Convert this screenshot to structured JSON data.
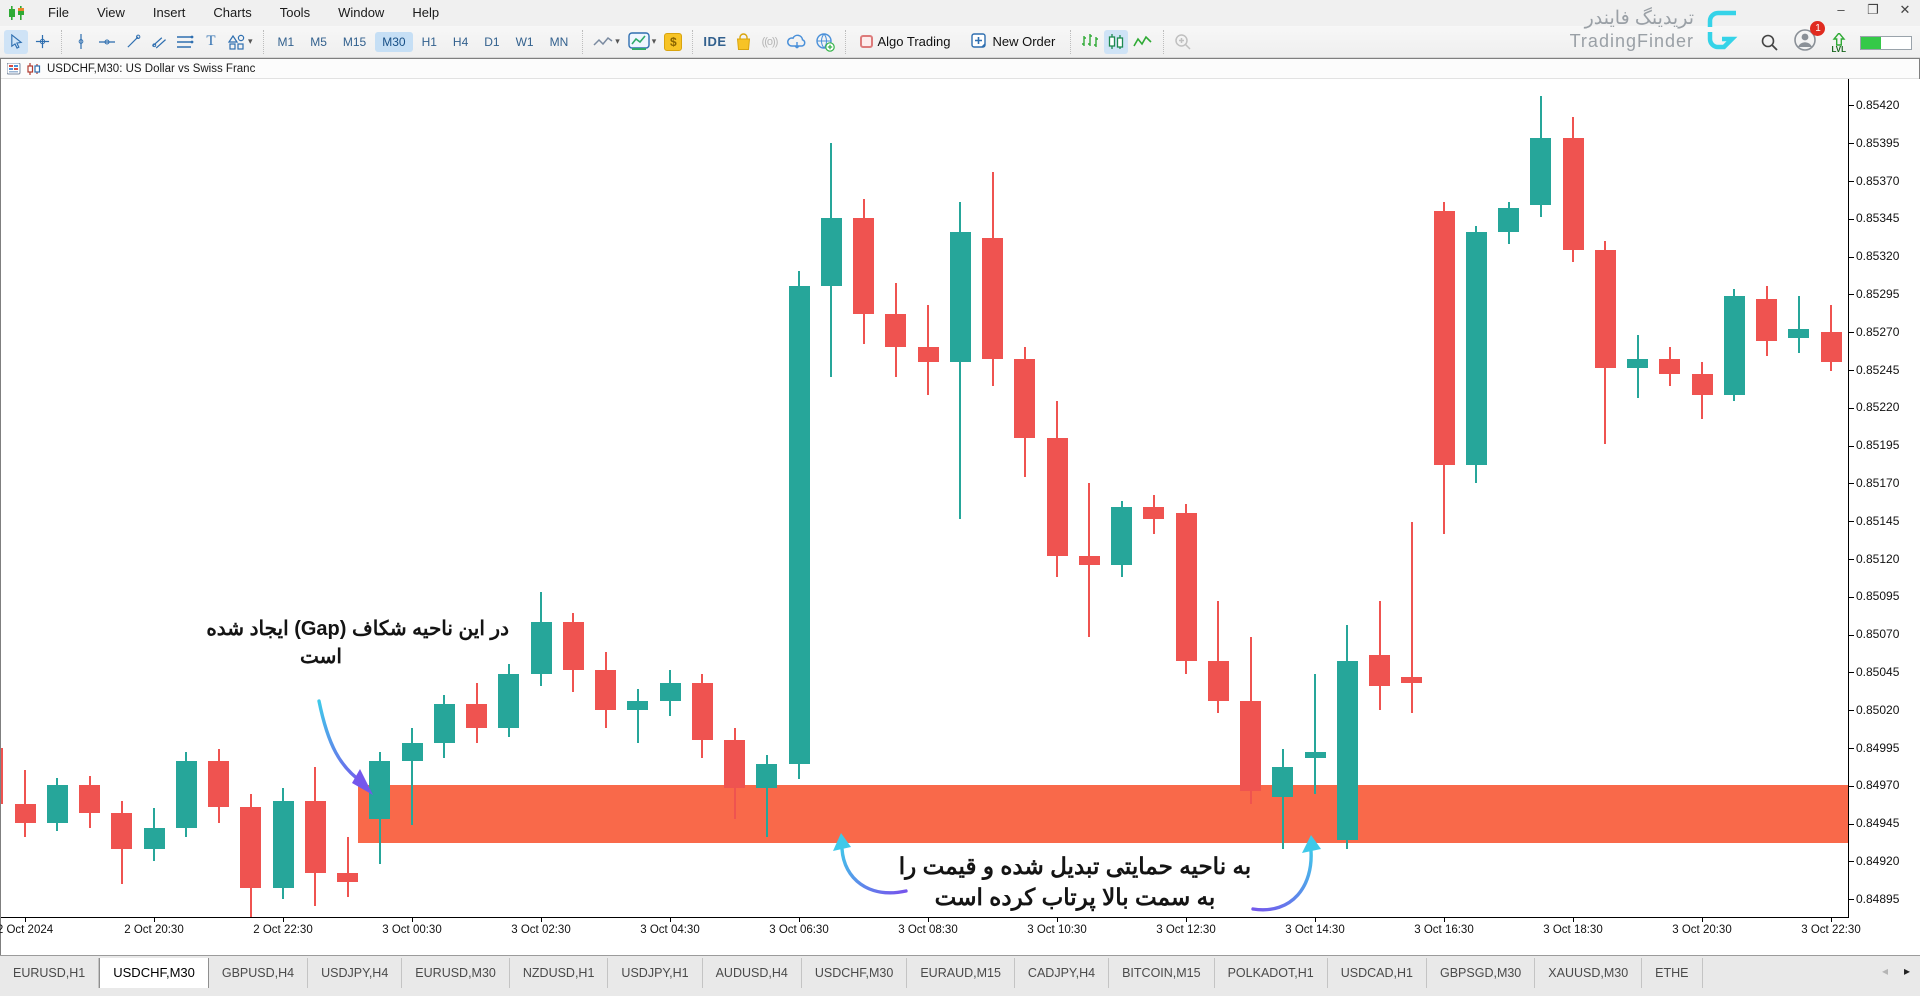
{
  "colors": {
    "bull": "#26A69A",
    "bear": "#EF5350",
    "zone": "#F9694A",
    "toolbar_accent": "#2F6FB0",
    "annotation_cyan": "#3FC9E9",
    "annotation_purple": "#7457EC",
    "logo_cyan": "#35D3E8",
    "badge_red": "#E02B20",
    "progress_green": "#35C948"
  },
  "menubar": {
    "items": [
      "File",
      "View",
      "Insert",
      "Charts",
      "Tools",
      "Window",
      "Help"
    ]
  },
  "window_controls": {
    "minimize": "–",
    "restore": "❐",
    "close": "✕"
  },
  "toolbar": {
    "timeframes": [
      "M1",
      "M5",
      "M15",
      "M30",
      "H1",
      "H4",
      "D1",
      "W1",
      "MN"
    ],
    "selected_timeframe": "M30",
    "ide_label": "IDE",
    "algo_trading_label": "Algo Trading",
    "new_order_label": "New Order",
    "signal_glyph": "((o))"
  },
  "watermark": {
    "title_fa": "تریدینگ فایندر",
    "title_en": "TradingFinder",
    "notification_count": "1",
    "lvl_label": "LVL"
  },
  "chart": {
    "title": "USDCHF,M30:  US Dollar vs Swiss Franc",
    "price_labels": [
      "0.85420",
      "0.85395",
      "0.85370",
      "0.85345",
      "0.85320",
      "0.85295",
      "0.85270",
      "0.85245",
      "0.85220",
      "0.85195",
      "0.85170",
      "0.85145",
      "0.85120",
      "0.85095",
      "0.85070",
      "0.85045",
      "0.85020",
      "0.84995",
      "0.84970",
      "0.84945",
      "0.84920",
      "0.84895"
    ],
    "time_labels": [
      "2 Oct 2024",
      "2 Oct 20:30",
      "2 Oct 22:30",
      "3 Oct 00:30",
      "3 Oct 02:30",
      "3 Oct 04:30",
      "3 Oct 06:30",
      "3 Oct 08:30",
      "3 Oct 10:30",
      "3 Oct 12:30",
      "3 Oct 14:30",
      "3 Oct 16:30",
      "3 Oct 18:30",
      "3 Oct 20:30",
      "3 Oct 22:30"
    ],
    "annotations": {
      "gap_note_line1": "در این ناحیه شکاف (Gap) ایجاد شده",
      "gap_note_line2": "است",
      "support_note_line1": "به ناحیه حمایتی تبدیل شده و قیمت را",
      "support_note_line2": "به سمت بالا پرتاب کرده است"
    }
  },
  "chart_data": {
    "type": "candlestick",
    "symbol": "USDCHF",
    "timeframe": "M30",
    "title": "USDCHF,M30: US Dollar vs Swiss Franc",
    "y_axis": {
      "min": 0.84882,
      "max": 0.85437,
      "tick_step": 0.00025
    },
    "zone": {
      "label": "gap-support-zone",
      "price_top": 0.8497,
      "price_bottom": 0.84932,
      "color": "#F9694A"
    },
    "columns": [
      "time",
      "open",
      "high",
      "low",
      "close"
    ],
    "candles": [
      [
        "2 Oct 18:00",
        0.84995,
        0.85,
        0.84948,
        0.84958
      ],
      [
        "2 Oct 18:30",
        0.84958,
        0.8498,
        0.84936,
        0.84945
      ],
      [
        "2 Oct 19:00",
        0.84945,
        0.84975,
        0.8494,
        0.8497
      ],
      [
        "2 Oct 19:30",
        0.8497,
        0.84976,
        0.84942,
        0.84952
      ],
      [
        "2 Oct 20:00",
        0.84952,
        0.8496,
        0.84905,
        0.84928
      ],
      [
        "2 Oct 20:30",
        0.84928,
        0.84955,
        0.8492,
        0.84942
      ],
      [
        "2 Oct 21:00",
        0.84942,
        0.84992,
        0.84936,
        0.84986
      ],
      [
        "2 Oct 21:30",
        0.84986,
        0.84994,
        0.84945,
        0.84956
      ],
      [
        "2 Oct 22:00",
        0.84956,
        0.84964,
        0.84882,
        0.84902
      ],
      [
        "2 Oct 22:30",
        0.84902,
        0.84968,
        0.84895,
        0.8496
      ],
      [
        "2 Oct 23:00",
        0.8496,
        0.84982,
        0.8489,
        0.84912
      ],
      [
        "2 Oct 23:30",
        0.84912,
        0.84936,
        0.84896,
        0.84906
      ],
      [
        "3 Oct 00:00",
        0.84948,
        0.84992,
        0.84918,
        0.84986
      ],
      [
        "3 Oct 00:30",
        0.84986,
        0.85008,
        0.84944,
        0.84998
      ],
      [
        "3 Oct 01:00",
        0.84998,
        0.8503,
        0.84988,
        0.85024
      ],
      [
        "3 Oct 01:30",
        0.85024,
        0.85038,
        0.84998,
        0.85008
      ],
      [
        "3 Oct 02:00",
        0.85008,
        0.8505,
        0.85002,
        0.85044
      ],
      [
        "3 Oct 02:30",
        0.85044,
        0.85098,
        0.85036,
        0.85078
      ],
      [
        "3 Oct 03:00",
        0.85078,
        0.85084,
        0.85032,
        0.85046
      ],
      [
        "3 Oct 03:30",
        0.85046,
        0.85058,
        0.85008,
        0.8502
      ],
      [
        "3 Oct 04:00",
        0.8502,
        0.85034,
        0.84998,
        0.85026
      ],
      [
        "3 Oct 04:30",
        0.85026,
        0.85046,
        0.85016,
        0.85038
      ],
      [
        "3 Oct 05:00",
        0.85038,
        0.85044,
        0.84988,
        0.85
      ],
      [
        "3 Oct 05:30",
        0.85,
        0.85008,
        0.84948,
        0.84968
      ],
      [
        "3 Oct 06:00",
        0.84968,
        0.8499,
        0.84936,
        0.84984
      ],
      [
        "3 Oct 06:30",
        0.84984,
        0.8531,
        0.84974,
        0.853
      ],
      [
        "3 Oct 07:00",
        0.853,
        0.85395,
        0.8524,
        0.85345
      ],
      [
        "3 Oct 07:30",
        0.85345,
        0.85358,
        0.85262,
        0.85282
      ],
      [
        "3 Oct 08:00",
        0.85282,
        0.85302,
        0.8524,
        0.8526
      ],
      [
        "3 Oct 08:30",
        0.8526,
        0.85288,
        0.85228,
        0.8525
      ],
      [
        "3 Oct 09:00",
        0.8525,
        0.85356,
        0.85146,
        0.85336
      ],
      [
        "3 Oct 09:30",
        0.85332,
        0.85376,
        0.85234,
        0.85252
      ],
      [
        "3 Oct 10:00",
        0.85252,
        0.8526,
        0.85174,
        0.852
      ],
      [
        "3 Oct 10:30",
        0.852,
        0.85224,
        0.85108,
        0.85122
      ],
      [
        "3 Oct 11:00",
        0.85122,
        0.8517,
        0.85068,
        0.85116
      ],
      [
        "3 Oct 11:30",
        0.85116,
        0.85158,
        0.85108,
        0.85154
      ],
      [
        "3 Oct 12:00",
        0.85154,
        0.85162,
        0.85136,
        0.85146
      ],
      [
        "3 Oct 12:30",
        0.8515,
        0.85156,
        0.85044,
        0.85052
      ],
      [
        "3 Oct 13:00",
        0.85052,
        0.85092,
        0.85018,
        0.85026
      ],
      [
        "3 Oct 13:30",
        0.85026,
        0.85068,
        0.84958,
        0.84966
      ],
      [
        "3 Oct 14:00",
        0.84962,
        0.84994,
        0.84928,
        0.84982
      ],
      [
        "3 Oct 14:30",
        0.84988,
        0.85044,
        0.84964,
        0.84992
      ],
      [
        "3 Oct 15:00",
        0.84934,
        0.85076,
        0.84928,
        0.85052
      ],
      [
        "3 Oct 15:30",
        0.85056,
        0.85092,
        0.8502,
        0.85036
      ],
      [
        "3 Oct 16:00",
        0.85042,
        0.85144,
        0.85018,
        0.85038
      ],
      [
        "3 Oct 16:30",
        0.8535,
        0.85356,
        0.85136,
        0.85182
      ],
      [
        "3 Oct 17:00",
        0.85182,
        0.8534,
        0.8517,
        0.85336
      ],
      [
        "3 Oct 17:30",
        0.85336,
        0.85356,
        0.85328,
        0.85352
      ],
      [
        "3 Oct 18:00",
        0.85354,
        0.85426,
        0.85346,
        0.85398
      ],
      [
        "3 Oct 18:30",
        0.85398,
        0.85412,
        0.85316,
        0.85324
      ],
      [
        "3 Oct 19:00",
        0.85324,
        0.8533,
        0.85196,
        0.85246
      ],
      [
        "3 Oct 19:30",
        0.85246,
        0.85268,
        0.85226,
        0.85252
      ],
      [
        "3 Oct 20:00",
        0.85252,
        0.8526,
        0.85234,
        0.85242
      ],
      [
        "3 Oct 20:30",
        0.85242,
        0.8525,
        0.85212,
        0.85228
      ],
      [
        "3 Oct 21:00",
        0.85228,
        0.85298,
        0.85224,
        0.85294
      ],
      [
        "3 Oct 21:30",
        0.85292,
        0.853,
        0.85254,
        0.85264
      ],
      [
        "3 Oct 22:00",
        0.85266,
        0.85294,
        0.85256,
        0.85272
      ],
      [
        "3 Oct 22:30",
        0.8527,
        0.85288,
        0.85244,
        0.8525
      ]
    ]
  },
  "tabbar": {
    "tabs": [
      "EURUSD,H1",
      "USDCHF,M30",
      "GBPUSD,H4",
      "USDJPY,H4",
      "EURUSD,M30",
      "NZDUSD,H1",
      "USDJPY,H1",
      "AUDUSD,H4",
      "USDCHF,M30",
      "EURAUD,M15",
      "CADJPY,H4",
      "BITCOIN,M15",
      "POLKADOT,H1",
      "USDCAD,H1",
      "GBPSGD,M30",
      "XAUUSD,M30",
      "ETHE"
    ],
    "active_index": 1
  }
}
